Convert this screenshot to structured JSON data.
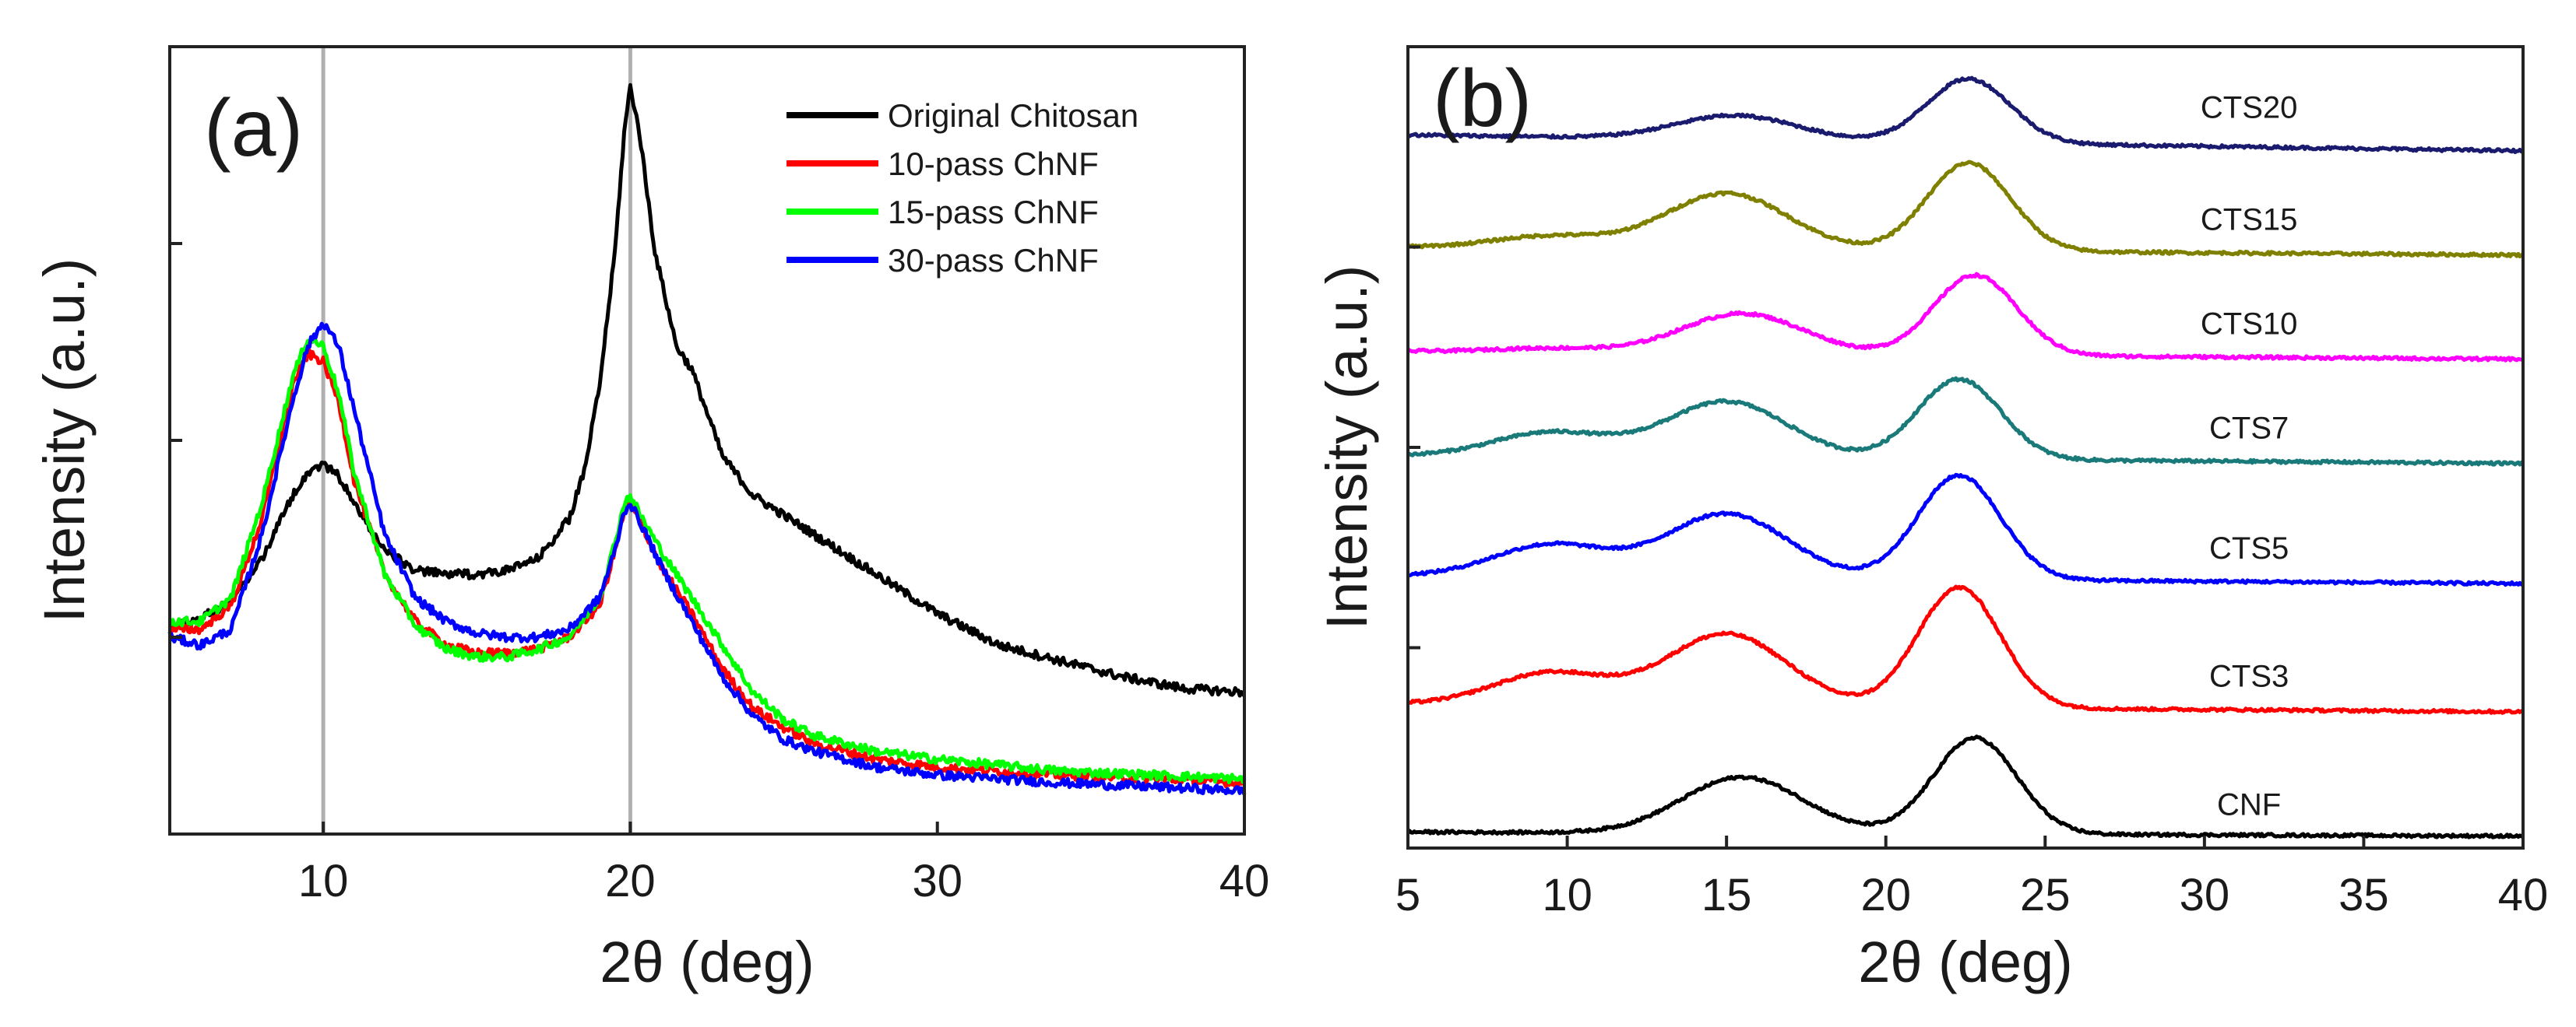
{
  "chart_data": [
    {
      "type": "line",
      "panel_label": "(a)",
      "xlabel": "2θ (deg)",
      "ylabel": "Intensity (a.u.)",
      "xlim": [
        5,
        40
      ],
      "ylim": [
        0,
        100
      ],
      "xticks": [
        10,
        20,
        30,
        40
      ],
      "yticks_unlabeled": [
        25,
        50,
        75,
        100
      ],
      "y_ticks_labeled": false,
      "reference_lines_x": [
        10,
        20
      ],
      "legend_position": "top-right",
      "series": [
        {
          "name": "Original Chitosan",
          "color": "#000000",
          "points": [
            [
              5,
              26
            ],
            [
              6,
              27.5
            ],
            [
              7,
              29.5
            ],
            [
              8,
              35
            ],
            [
              9,
              43
            ],
            [
              9.5,
              46
            ],
            [
              10,
              47
            ],
            [
              10.5,
              45.5
            ],
            [
              11,
              42
            ],
            [
              12,
              36
            ],
            [
              13,
              33.5
            ],
            [
              14,
              33
            ],
            [
              15,
              33
            ],
            [
              16,
              33.5
            ],
            [
              17,
              35
            ],
            [
              18,
              40
            ],
            [
              18.5,
              46
            ],
            [
              19,
              57
            ],
            [
              19.5,
              74
            ],
            [
              19.8,
              89
            ],
            [
              20,
              95
            ],
            [
              20.3,
              89
            ],
            [
              20.8,
              74
            ],
            [
              21.5,
              62
            ],
            [
              22,
              59
            ],
            [
              23,
              48
            ],
            [
              24,
              43
            ],
            [
              26,
              38
            ],
            [
              28,
              33
            ],
            [
              30,
              28
            ],
            [
              32,
              24
            ],
            [
              34,
              22
            ],
            [
              36,
              20
            ],
            [
              38,
              18.5
            ],
            [
              40,
              18
            ]
          ]
        },
        {
          "name": "10-pass ChNF",
          "color": "#ff0000",
          "points": [
            [
              5,
              26
            ],
            [
              6,
              26
            ],
            [
              7,
              29
            ],
            [
              8,
              40
            ],
            [
              9,
              57
            ],
            [
              9.5,
              61
            ],
            [
              10,
              60
            ],
            [
              10.5,
              55
            ],
            [
              11,
              45
            ],
            [
              12,
              33
            ],
            [
              13,
              27
            ],
            [
              14,
              24
            ],
            [
              15,
              23
            ],
            [
              16,
              23
            ],
            [
              17,
              23.5
            ],
            [
              18,
              25
            ],
            [
              19,
              29
            ],
            [
              19.5,
              36
            ],
            [
              19.8,
              41
            ],
            [
              20,
              42
            ],
            [
              20.4,
              39
            ],
            [
              21,
              34
            ],
            [
              22,
              28
            ],
            [
              23,
              21
            ],
            [
              24,
              16
            ],
            [
              25,
              13.5
            ],
            [
              26,
              11.5
            ],
            [
              28,
              9.5
            ],
            [
              30,
              8.5
            ],
            [
              34,
              7.5
            ],
            [
              40,
              6.5
            ]
          ]
        },
        {
          "name": "15-pass ChNF",
          "color": "#00ff00",
          "points": [
            [
              5,
              27
            ],
            [
              6,
              27
            ],
            [
              7,
              30
            ],
            [
              8,
              42
            ],
            [
              9,
              58
            ],
            [
              9.5,
              63
            ],
            [
              10,
              62
            ],
            [
              10.5,
              56
            ],
            [
              11,
              46
            ],
            [
              12,
              33
            ],
            [
              13,
              26.5
            ],
            [
              14,
              23.5
            ],
            [
              15,
              22.5
            ],
            [
              16,
              22.5
            ],
            [
              17,
              23.5
            ],
            [
              18,
              25
            ],
            [
              19,
              30
            ],
            [
              19.5,
              37
            ],
            [
              19.8,
              42
            ],
            [
              20,
              43
            ],
            [
              20.4,
              40
            ],
            [
              21,
              36
            ],
            [
              22,
              30
            ],
            [
              23,
              24
            ],
            [
              24,
              18
            ],
            [
              25,
              14.5
            ],
            [
              26,
              12.5
            ],
            [
              28,
              10.5
            ],
            [
              30,
              9.5
            ],
            [
              34,
              8
            ],
            [
              40,
              7
            ]
          ]
        },
        {
          "name": "30-pass ChNF",
          "color": "#0000ff",
          "points": [
            [
              5,
              25
            ],
            [
              6,
              24
            ],
            [
              7,
              26
            ],
            [
              8,
              38
            ],
            [
              9,
              55
            ],
            [
              9.5,
              62
            ],
            [
              10,
              65
            ],
            [
              10.5,
              62
            ],
            [
              11,
              54
            ],
            [
              12,
              38
            ],
            [
              13,
              30
            ],
            [
              14,
              27
            ],
            [
              15,
              25.5
            ],
            [
              16,
              25
            ],
            [
              17,
              25
            ],
            [
              18,
              26
            ],
            [
              19,
              30
            ],
            [
              19.5,
              36
            ],
            [
              19.8,
              41
            ],
            [
              20,
              42
            ],
            [
              20.4,
              39
            ],
            [
              21,
              34
            ],
            [
              22,
              27
            ],
            [
              23,
              20
            ],
            [
              24,
              15
            ],
            [
              25,
              12
            ],
            [
              26,
              10.5
            ],
            [
              28,
              8.5
            ],
            [
              30,
              7.5
            ],
            [
              34,
              6.5
            ],
            [
              40,
              5.5
            ]
          ]
        }
      ]
    },
    {
      "type": "line",
      "panel_label": "(b)",
      "xlabel": "2θ (deg)",
      "ylabel": "Intensity (a.u.)",
      "xlim": [
        5,
        40
      ],
      "ylim": [
        0,
        100
      ],
      "xticks": [
        5,
        10,
        15,
        20,
        25,
        30,
        35,
        40
      ],
      "yticks_unlabeled": [
        25,
        50,
        75,
        100
      ],
      "y_ticks_labeled": false,
      "series": [
        {
          "name": "CNF",
          "color": "#000000",
          "baseline": 2,
          "base_drop": 0.5,
          "amorph_height": 0,
          "peak15_height": 7,
          "peak15_center": 15.5,
          "peak22_height": 12,
          "peak22_center": 22.8
        },
        {
          "name": "CTS3",
          "color": "#ff0000",
          "baseline": 18,
          "base_drop": 1,
          "amorph_height": 4,
          "peak15_height": 9,
          "peak15_center": 15,
          "peak22_height": 15,
          "peak22_center": 22.3
        },
        {
          "name": "CTS5",
          "color": "#0000ff",
          "baseline": 34,
          "base_drop": 1,
          "amorph_height": 4,
          "peak15_height": 8,
          "peak15_center": 15,
          "peak22_height": 13,
          "peak22_center": 22.3
        },
        {
          "name": "CTS7",
          "color": "#1a7a7a",
          "baseline": 49,
          "base_drop": 1,
          "amorph_height": 3,
          "peak15_height": 7,
          "peak15_center": 15,
          "peak22_height": 10,
          "peak22_center": 22.3
        },
        {
          "name": "CTS10",
          "color": "#ff00ff",
          "baseline": 62,
          "base_drop": 1,
          "amorph_height": 0.5,
          "peak15_height": 5,
          "peak15_center": 15.5,
          "peak22_height": 10,
          "peak22_center": 22.8
        },
        {
          "name": "CTS15",
          "color": "#808000",
          "baseline": 75,
          "base_drop": 1,
          "amorph_height": 1.5,
          "peak15_height": 7,
          "peak15_center": 15,
          "peak22_height": 11,
          "peak22_center": 22.6
        },
        {
          "name": "CTS20",
          "color": "#1a1a6e",
          "baseline": 89,
          "base_drop": 2,
          "amorph_height": 0,
          "peak15_height": 3,
          "peak15_center": 15.3,
          "peak22_height": 8,
          "peak22_center": 22.6
        }
      ]
    }
  ]
}
